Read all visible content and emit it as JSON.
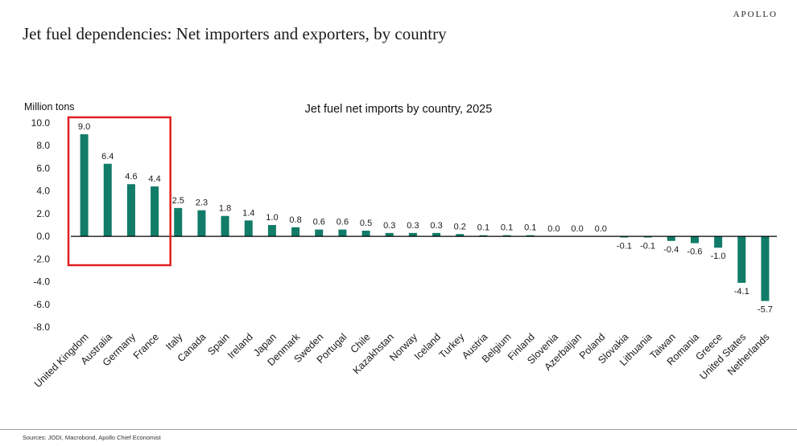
{
  "header": {
    "logo": "APOLLO",
    "title": "Jet fuel dependencies: Net importers and exporters, by country"
  },
  "chart_data": {
    "type": "bar",
    "title": "Jet fuel net imports by country, 2025",
    "ylabel": "Million tons",
    "ylim": [
      -8,
      10
    ],
    "ytick_step": 2,
    "grid": false,
    "legend": false,
    "bar_color": "#117C68",
    "highlight_box": {
      "start_index": 0,
      "end_index": 3,
      "color": "#E02020"
    },
    "categories": [
      "United Kingdom",
      "Australia",
      "Germany",
      "France",
      "Italy",
      "Canada",
      "Spain",
      "Ireland",
      "Japan",
      "Denmark",
      "Sweden",
      "Portugal",
      "Chile",
      "Kazakhstan",
      "Norway",
      "Iceland",
      "Turkey",
      "Austria",
      "Belgium",
      "Finland",
      "Slovenia",
      "Azerbaijan",
      "Poland",
      "Slovakia",
      "Lithuania",
      "Taiwan",
      "Romania",
      "Greece",
      "United States",
      "Netherlands"
    ],
    "values": [
      9.0,
      6.4,
      4.6,
      4.4,
      2.5,
      2.3,
      1.8,
      1.4,
      1.0,
      0.8,
      0.6,
      0.6,
      0.5,
      0.3,
      0.3,
      0.3,
      0.2,
      0.1,
      0.1,
      0.1,
      0.0,
      0.0,
      0.0,
      -0.1,
      -0.1,
      -0.4,
      -0.6,
      -1.0,
      -4.1,
      -5.7
    ]
  },
  "footer": {
    "sources": "Sources: JODI, Macrobond, Apollo Chief Economist"
  }
}
